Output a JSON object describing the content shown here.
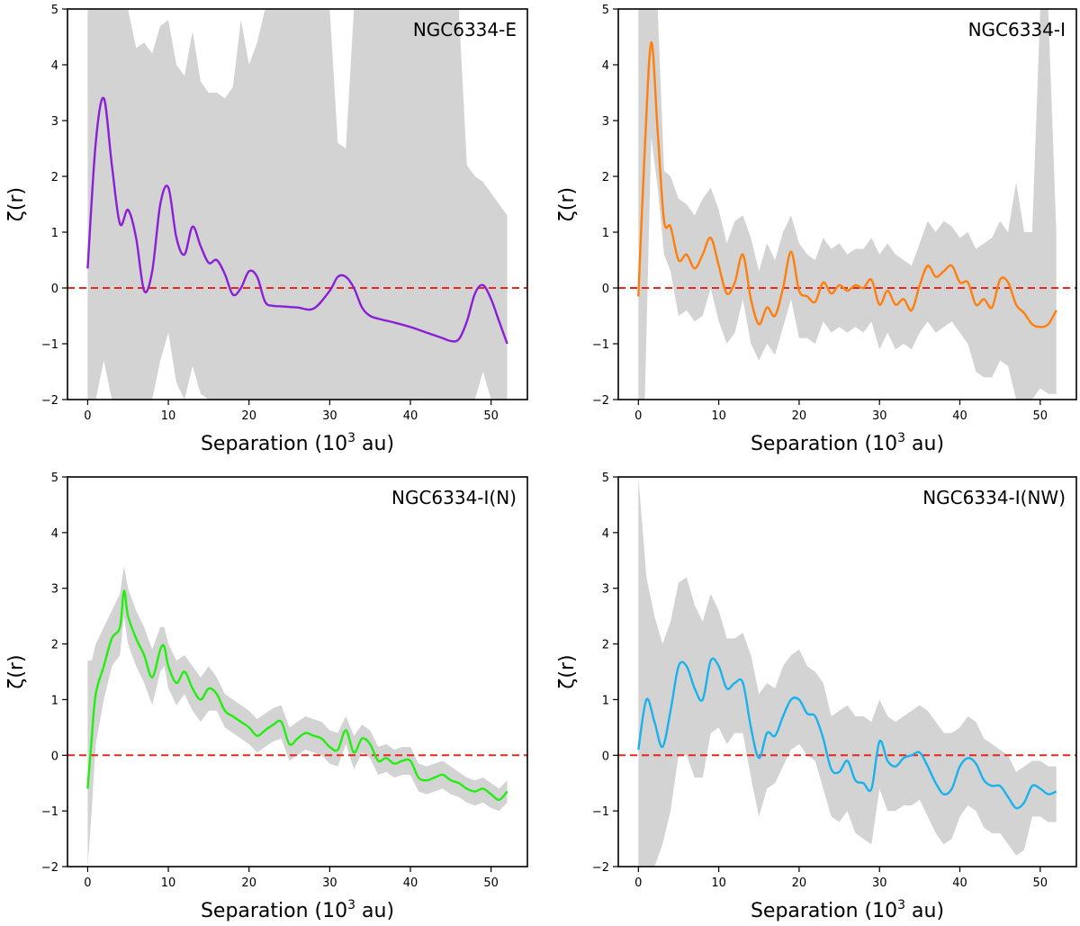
{
  "figure": {
    "shared": {
      "xlabel": "Separation (10",
      "xlabel_sup": "3",
      "xlabel_unit": " au)",
      "ylabel": "ζ(r)",
      "xlim": [
        -2.5,
        54.5
      ],
      "ylim": [
        -2,
        5
      ],
      "xticks": [
        0,
        10,
        20,
        30,
        40,
        50
      ],
      "yticks": [
        -2,
        -1,
        0,
        1,
        2,
        3,
        4,
        5
      ],
      "zero_line_color": "#e8281e",
      "band_color": "#d3d3d3"
    }
  },
  "chart_data": [
    {
      "type": "line",
      "title": "NGC6334-E",
      "xlabel": "Separation (10^3 au)",
      "ylabel": "ζ(r)",
      "color": "#8b1fd6",
      "xlim": [
        -2.5,
        54.5
      ],
      "ylim": [
        -2,
        5
      ],
      "grid": false,
      "x": [
        0,
        1,
        2,
        3,
        4,
        5,
        6,
        7,
        8,
        9,
        10,
        11,
        12,
        13,
        14,
        15,
        16,
        17,
        18,
        19,
        20,
        21,
        22,
        23,
        24,
        26,
        28,
        30,
        31,
        32,
        33,
        34,
        35,
        36,
        38,
        40,
        42,
        44,
        45,
        46,
        47,
        48,
        49,
        50,
        51,
        52
      ],
      "y": [
        0.35,
        2.6,
        3.4,
        2.2,
        1.15,
        1.4,
        0.9,
        -0.05,
        0.3,
        1.5,
        1.8,
        0.9,
        0.6,
        1.1,
        0.75,
        0.45,
        0.5,
        0.25,
        -0.12,
        0.0,
        0.3,
        0.2,
        -0.25,
        -0.32,
        -0.33,
        -0.35,
        -0.37,
        -0.05,
        0.2,
        0.2,
        0.0,
        -0.35,
        -0.5,
        -0.55,
        -0.62,
        -0.7,
        -0.8,
        -0.9,
        -0.95,
        -0.92,
        -0.6,
        -0.1,
        0.05,
        -0.2,
        -0.6,
        -1.0
      ],
      "band_upper": [
        5,
        5,
        5,
        5,
        5,
        5,
        4.3,
        4.4,
        4.2,
        4.7,
        4.8,
        4.0,
        3.8,
        4.6,
        3.7,
        3.5,
        3.5,
        3.4,
        3.6,
        4.8,
        4.0,
        4.4,
        5,
        5,
        5,
        5,
        5,
        5,
        2.6,
        2.5,
        5,
        5,
        5,
        5,
        5,
        5,
        5,
        5,
        5,
        5,
        2.2,
        2.0,
        1.9,
        1.7,
        1.5,
        1.3
      ],
      "band_lower": [
        -2,
        -2,
        -1.3,
        -2,
        -2,
        -2,
        -2,
        -2,
        -2,
        -1.3,
        -0.8,
        -1.7,
        -2,
        -1.4,
        -1.9,
        -2,
        -2,
        -2,
        -2,
        -2,
        -2,
        -2,
        -2,
        -2,
        -2,
        -2,
        -2,
        -2,
        -2,
        -2,
        -2,
        -2,
        -2,
        -2,
        -2,
        -2,
        -2,
        -2,
        -2,
        -2,
        -2,
        -2,
        -1.5,
        -2,
        -2,
        -2
      ]
    },
    {
      "type": "line",
      "title": "NGC6334-I",
      "xlabel": "Separation (10^3 au)",
      "ylabel": "ζ(r)",
      "color": "#ff7f0e",
      "xlim": [
        -2.5,
        54.5
      ],
      "ylim": [
        -2,
        5
      ],
      "grid": false,
      "x": [
        0,
        0.8,
        1.6,
        2.4,
        3.2,
        4,
        5,
        6,
        7,
        8,
        9,
        10,
        11,
        12,
        13,
        14,
        15,
        16,
        17,
        18,
        19,
        20,
        21,
        22,
        23,
        24,
        25,
        26,
        27,
        28,
        29,
        30,
        31,
        32,
        33,
        34,
        35,
        36,
        37,
        38,
        39,
        40,
        41,
        42,
        43,
        44,
        45,
        46,
        47,
        48,
        49,
        50,
        51,
        52
      ],
      "y": [
        -0.15,
        2.5,
        4.4,
        2.8,
        1.2,
        1.1,
        0.5,
        0.6,
        0.35,
        0.6,
        0.9,
        0.4,
        -0.1,
        0.1,
        0.6,
        -0.2,
        -0.65,
        -0.35,
        -0.5,
        0.0,
        0.65,
        -0.05,
        -0.15,
        -0.25,
        0.1,
        -0.1,
        0.05,
        -0.05,
        0.05,
        0.0,
        0.15,
        -0.3,
        -0.05,
        -0.3,
        -0.2,
        -0.4,
        0.05,
        0.4,
        0.2,
        0.3,
        0.4,
        0.1,
        0.1,
        -0.3,
        -0.2,
        -0.35,
        0.15,
        0.1,
        -0.3,
        -0.45,
        -0.65,
        -0.7,
        -0.65,
        -0.4
      ],
      "band_upper": [
        5,
        5,
        5,
        5,
        2.1,
        2.0,
        1.6,
        1.5,
        1.3,
        1.6,
        1.8,
        1.4,
        0.8,
        1.2,
        1.3,
        0.9,
        0.3,
        0.8,
        0.5,
        1.0,
        1.3,
        0.8,
        0.6,
        0.5,
        0.9,
        0.7,
        0.8,
        0.6,
        0.7,
        0.7,
        0.9,
        0.6,
        0.8,
        0.6,
        0.5,
        0.4,
        0.8,
        1.2,
        1.0,
        1.2,
        1.1,
        0.9,
        1.0,
        0.7,
        0.8,
        0.9,
        1.2,
        1.0,
        1.9,
        1.0,
        1.0,
        5,
        5,
        1.0
      ],
      "band_lower": [
        -2,
        -2,
        2.7,
        1.8,
        0.6,
        0.3,
        -0.5,
        -0.4,
        -0.6,
        -0.5,
        0.0,
        -0.6,
        -1.0,
        -0.8,
        -0.2,
        -1.0,
        -1.3,
        -1.0,
        -1.2,
        -0.7,
        -0.2,
        -0.9,
        -0.9,
        -1.0,
        -0.6,
        -0.8,
        -0.7,
        -0.8,
        -0.7,
        -0.8,
        -0.6,
        -1.1,
        -0.8,
        -1.1,
        -1.0,
        -1.1,
        -0.8,
        -0.6,
        -0.8,
        -0.7,
        -0.6,
        -0.8,
        -1.0,
        -1.5,
        -1.6,
        -1.6,
        -1.3,
        -1.4,
        -2,
        -2,
        -2,
        -1.8,
        -1.9,
        -1.9
      ]
    },
    {
      "type": "line",
      "title": "NGC6334-I(N)",
      "xlabel": "Separation (10^3 au)",
      "ylabel": "ζ(r)",
      "color": "#22ee11",
      "xlim": [
        -2.5,
        54.5
      ],
      "ylim": [
        -2,
        5
      ],
      "grid": false,
      "x": [
        0,
        0.5,
        1,
        2,
        3,
        4,
        4.5,
        5,
        6,
        7,
        8,
        9,
        9.5,
        10,
        11,
        12,
        13,
        14,
        15,
        16,
        17,
        18,
        19,
        20,
        21,
        22,
        23,
        24,
        25,
        26,
        27,
        28,
        29,
        30,
        31,
        32,
        33,
        34,
        35,
        36,
        37,
        38,
        39,
        40,
        41,
        42,
        43,
        44,
        45,
        46,
        47,
        48,
        49,
        50,
        51,
        52
      ],
      "y": [
        -0.6,
        0.3,
        1.1,
        1.6,
        2.1,
        2.3,
        2.95,
        2.5,
        2.1,
        1.8,
        1.4,
        1.9,
        1.95,
        1.6,
        1.3,
        1.5,
        1.2,
        1.0,
        1.2,
        1.1,
        0.8,
        0.7,
        0.6,
        0.5,
        0.35,
        0.45,
        0.55,
        0.6,
        0.2,
        0.3,
        0.4,
        0.35,
        0.3,
        0.15,
        0.1,
        0.45,
        0.05,
        0.3,
        0.2,
        -0.1,
        -0.05,
        -0.15,
        -0.1,
        -0.1,
        -0.4,
        -0.45,
        -0.4,
        -0.35,
        -0.45,
        -0.5,
        -0.6,
        -0.65,
        -0.6,
        -0.7,
        -0.8,
        -0.65
      ],
      "band_upper": [
        1.7,
        1.7,
        2.0,
        2.3,
        2.6,
        2.9,
        3.4,
        3.0,
        2.6,
        2.3,
        1.9,
        2.3,
        2.3,
        2.0,
        1.7,
        1.8,
        1.6,
        1.4,
        1.6,
        1.4,
        1.1,
        1.0,
        0.9,
        0.8,
        0.65,
        0.75,
        0.85,
        0.9,
        0.5,
        0.6,
        0.7,
        0.65,
        0.6,
        0.45,
        0.4,
        0.7,
        0.35,
        0.55,
        0.45,
        0.15,
        0.2,
        0.1,
        0.15,
        0.15,
        -0.15,
        -0.2,
        -0.15,
        -0.1,
        -0.2,
        -0.3,
        -0.4,
        -0.45,
        -0.4,
        -0.5,
        -0.6,
        -0.45
      ],
      "band_lower": [
        -2,
        -1.0,
        0.2,
        1.0,
        1.6,
        1.8,
        2.5,
        2.0,
        1.6,
        1.3,
        0.9,
        1.5,
        1.6,
        1.2,
        0.9,
        1.1,
        0.8,
        0.6,
        0.8,
        0.8,
        0.5,
        0.4,
        0.3,
        0.2,
        0.05,
        0.15,
        0.25,
        0.3,
        -0.1,
        0.0,
        0.1,
        0.05,
        0.0,
        -0.15,
        -0.2,
        0.2,
        -0.25,
        0.05,
        -0.05,
        -0.35,
        -0.3,
        -0.4,
        -0.35,
        -0.35,
        -0.65,
        -0.7,
        -0.65,
        -0.6,
        -0.7,
        -0.75,
        -0.85,
        -0.9,
        -0.85,
        -0.95,
        -1.0,
        -0.85
      ]
    },
    {
      "type": "line",
      "title": "NGC6334-I(NW)",
      "xlabel": "Separation (10^3 au)",
      "ylabel": "ζ(r)",
      "color": "#1ab2ec",
      "xlim": [
        -2.5,
        54.5
      ],
      "ylim": [
        -2,
        5
      ],
      "grid": false,
      "x": [
        0,
        1,
        2,
        3,
        4,
        5,
        6,
        7,
        8,
        9,
        10,
        11,
        12,
        13,
        14,
        15,
        16,
        17,
        18,
        19,
        20,
        21,
        22,
        23,
        24,
        25,
        26,
        27,
        28,
        29,
        30,
        31,
        32,
        33,
        34,
        35,
        36,
        37,
        38,
        39,
        40,
        41,
        42,
        43,
        44,
        45,
        46,
        47,
        48,
        49,
        50,
        51,
        52
      ],
      "y": [
        0.1,
        1.0,
        0.6,
        0.15,
        0.8,
        1.6,
        1.6,
        1.2,
        1.0,
        1.7,
        1.6,
        1.2,
        1.3,
        1.3,
        0.5,
        -0.05,
        0.4,
        0.35,
        0.7,
        1.0,
        1.0,
        0.75,
        0.7,
        0.3,
        -0.25,
        -0.3,
        -0.1,
        -0.45,
        -0.5,
        -0.6,
        0.25,
        -0.1,
        -0.2,
        -0.05,
        0.0,
        0.05,
        -0.2,
        -0.5,
        -0.7,
        -0.6,
        -0.2,
        -0.05,
        -0.15,
        -0.45,
        -0.55,
        -0.55,
        -0.75,
        -0.95,
        -0.85,
        -0.55,
        -0.6,
        -0.7,
        -0.65
      ],
      "band_upper": [
        5,
        3.2,
        2.5,
        2.0,
        2.4,
        3.1,
        3.2,
        2.7,
        2.4,
        2.9,
        2.6,
        2.1,
        2.1,
        2.2,
        1.8,
        1.1,
        1.3,
        1.2,
        1.6,
        1.8,
        1.9,
        1.6,
        1.5,
        1.3,
        0.7,
        0.8,
        0.9,
        0.7,
        0.7,
        0.6,
        1.0,
        0.7,
        0.6,
        0.7,
        0.8,
        0.9,
        0.8,
        0.6,
        0.4,
        0.4,
        0.5,
        0.7,
        0.6,
        0.3,
        0.2,
        0.1,
        0.0,
        -0.3,
        -0.2,
        -0.1,
        -0.1,
        -0.2,
        -0.2
      ],
      "band_lower": [
        -2,
        -2,
        -2,
        -1.6,
        -1.0,
        0.0,
        0.0,
        -0.4,
        -0.4,
        0.4,
        0.5,
        0.2,
        0.4,
        0.4,
        -0.4,
        -1.1,
        -0.6,
        -0.5,
        -0.2,
        0.1,
        0.2,
        0.0,
        -0.1,
        -0.6,
        -1.1,
        -1.2,
        -1.0,
        -1.4,
        -1.5,
        -1.6,
        -0.6,
        -1.0,
        -1.0,
        -0.9,
        -0.9,
        -0.8,
        -1.1,
        -1.4,
        -1.6,
        -1.5,
        -1.1,
        -0.9,
        -1.0,
        -1.3,
        -1.4,
        -1.4,
        -1.6,
        -1.8,
        -1.7,
        -1.1,
        -1.1,
        -1.2,
        -1.2
      ]
    }
  ]
}
